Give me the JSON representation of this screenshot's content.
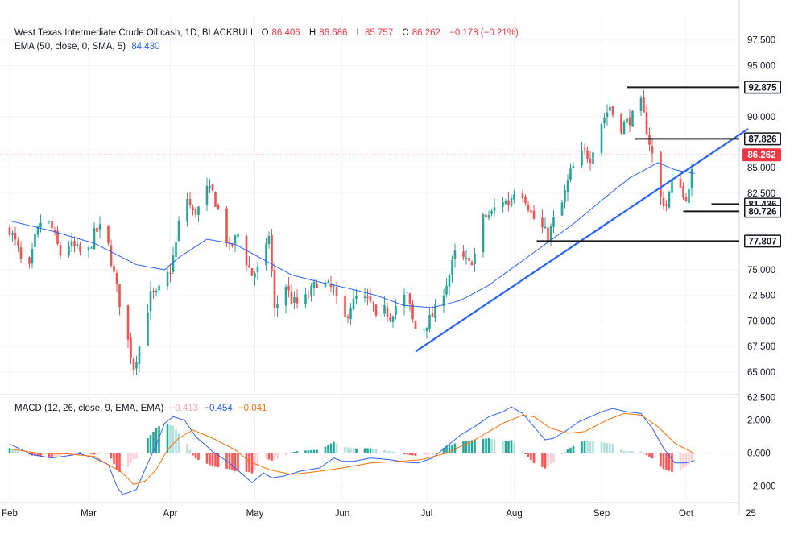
{
  "header": {
    "symbol_title": "West Texas Intermediate Crude Oil cash, 1D, BLACKBULL",
    "o_label": "O",
    "o_value": "86.406",
    "h_label": "H",
    "h_value": "86.686",
    "l_label": "L",
    "l_value": "85.757",
    "c_label": "C",
    "c_value": "86.262",
    "change": "−0.178 (−0.21%)",
    "ema_label": "EMA (50, close, 0, SMA, 5)",
    "ema_value": "84.430"
  },
  "macd_header": {
    "label": "MACD (12, 26, close, 9, EMA, EMA)",
    "hist_value": "−0.413",
    "macd_value": "−0.454",
    "signal_value": "−0.041"
  },
  "colors": {
    "up": "#26a69a",
    "down": "#ef5350",
    "ema": "#2962ff",
    "macd": "#2962ff",
    "signal": "#ff6d00",
    "line": "#1a1a1a",
    "price_badge": "#f23645"
  },
  "chart_data": [
    {
      "type": "candlestick",
      "title": "West Texas Intermediate Crude Oil cash, 1D, BLACKBULL",
      "ylim": [
        60.5,
        98.0
      ],
      "y_ticks": [
        "97.500",
        "95.000",
        "90.000",
        "85.000",
        "82.500",
        "75.000",
        "72.500",
        "70.000",
        "67.500",
        "65.000",
        "62.500"
      ],
      "x_ticks": [
        "Feb",
        "Mar",
        "Apr",
        "May",
        "Jun",
        "Jul",
        "Aug",
        "Sep",
        "Oct",
        "25"
      ],
      "x_tick_days": [
        0,
        28,
        57,
        87,
        118,
        148,
        179,
        210,
        240,
        263
      ],
      "current_price": 86.262,
      "current_price_label": "86.262",
      "level_labels": [
        {
          "value": 92.875,
          "label": "92.875",
          "x_from_day": 219
        },
        {
          "value": 87.826,
          "label": "87.826",
          "x_from_day": 222
        },
        {
          "value": 81.436,
          "label": "81.436",
          "x_from_day": 249
        },
        {
          "value": 80.726,
          "label": "80.726",
          "x_from_day": 239
        },
        {
          "value": 77.807,
          "label": "77.807",
          "x_from_day": 187
        }
      ],
      "trendline": {
        "from": {
          "day": 144,
          "price": 67.0
        },
        "to": {
          "day": 262,
          "price": 88.8
        }
      },
      "anchors": [
        [
          0,
          79.0
        ],
        [
          3,
          77.0
        ],
        [
          6,
          73.6
        ],
        [
          9,
          78.0
        ],
        [
          12,
          80.5
        ],
        [
          15,
          79.0
        ],
        [
          18,
          76.5
        ],
        [
          21,
          77.5
        ],
        [
          24,
          77.0
        ],
        [
          27,
          76.0
        ],
        [
          30,
          78.5
        ],
        [
          32,
          79.0
        ],
        [
          35,
          77.3
        ],
        [
          37,
          74.5
        ],
        [
          40,
          70.5
        ],
        [
          42,
          68.0
        ],
        [
          44,
          65.5
        ],
        [
          46,
          67.5
        ],
        [
          48,
          70.0
        ],
        [
          50,
          72.5
        ],
        [
          52,
          72.5
        ],
        [
          54,
          73.5
        ],
        [
          57,
          75.0
        ],
        [
          59,
          77.5
        ],
        [
          61,
          81.5
        ],
        [
          63,
          82.0
        ],
        [
          65,
          80.5
        ],
        [
          67,
          81.0
        ],
        [
          69,
          83.0
        ],
        [
          72,
          82.5
        ],
        [
          75,
          80.0
        ],
        [
          78,
          77.0
        ],
        [
          81,
          78.5
        ],
        [
          83,
          76.5
        ],
        [
          86,
          74.5
        ],
        [
          88,
          75.0
        ],
        [
          90,
          75.5
        ],
        [
          92,
          78.5
        ],
        [
          94,
          71.0
        ],
        [
          96,
          72.5
        ],
        [
          98,
          73.5
        ],
        [
          100,
          72.0
        ],
        [
          103,
          71.5
        ],
        [
          106,
          72.5
        ],
        [
          109,
          73.8
        ],
        [
          112,
          73.5
        ],
        [
          115,
          73.0
        ],
        [
          118,
          69.5
        ],
        [
          121,
          71.5
        ],
        [
          124,
          72.5
        ],
        [
          126,
          72.0
        ],
        [
          129,
          71.5
        ],
        [
          131,
          68.5
        ],
        [
          133,
          71.0
        ],
        [
          135,
          70.5
        ],
        [
          138,
          72.0
        ],
        [
          141,
          72.5
        ],
        [
          143,
          70.0
        ],
        [
          145,
          68.5
        ],
        [
          148,
          69.8
        ],
        [
          150,
          70.5
        ],
        [
          152,
          71.5
        ],
        [
          154,
          73.0
        ],
        [
          156,
          74.5
        ],
        [
          158,
          76.5
        ],
        [
          161,
          76.0
        ],
        [
          163,
          75.5
        ],
        [
          166,
          77.0
        ],
        [
          168,
          80.0
        ],
        [
          171,
          80.5
        ],
        [
          174,
          82.0
        ],
        [
          177,
          81.5
        ],
        [
          180,
          83.5
        ],
        [
          183,
          82.0
        ],
        [
          185,
          80.5
        ],
        [
          187,
          79.5
        ],
        [
          189,
          79.0
        ],
        [
          191,
          78.3
        ],
        [
          193,
          79.8
        ],
        [
          196,
          81.5
        ],
        [
          199,
          84.5
        ],
        [
          202,
          86.0
        ],
        [
          204,
          86.5
        ],
        [
          206,
          86.0
        ],
        [
          208,
          88.0
        ],
        [
          210,
          89.5
        ],
        [
          212,
          90.5
        ],
        [
          213,
          91.0
        ],
        [
          215,
          89.5
        ],
        [
          217,
          89.0
        ],
        [
          219,
          89.5
        ],
        [
          221,
          90.0
        ],
        [
          223,
          92.5
        ],
        [
          225,
          90.0
        ],
        [
          227,
          87.5
        ],
        [
          229,
          85.0
        ],
        [
          231,
          82.0
        ],
        [
          233,
          81.3
        ],
        [
          235,
          83.5
        ],
        [
          237,
          85.0
        ],
        [
          239,
          82.0
        ],
        [
          241,
          82.5
        ],
        [
          243,
          86.3
        ]
      ],
      "ema_anchors": [
        [
          0,
          79.8
        ],
        [
          15,
          78.8
        ],
        [
          30,
          77.6
        ],
        [
          45,
          75.5
        ],
        [
          55,
          75.0
        ],
        [
          60,
          76.2
        ],
        [
          70,
          78.0
        ],
        [
          80,
          77.5
        ],
        [
          90,
          76.0
        ],
        [
          100,
          74.5
        ],
        [
          110,
          73.8
        ],
        [
          120,
          73.2
        ],
        [
          130,
          72.5
        ],
        [
          140,
          71.5
        ],
        [
          150,
          71.3
        ],
        [
          160,
          72.0
        ],
        [
          170,
          73.5
        ],
        [
          180,
          75.5
        ],
        [
          190,
          77.5
        ],
        [
          200,
          79.5
        ],
        [
          210,
          81.8
        ],
        [
          220,
          84.0
        ],
        [
          230,
          85.5
        ],
        [
          236,
          84.8
        ],
        [
          243,
          84.43
        ]
      ]
    },
    {
      "type": "macd",
      "title": "MACD (12, 26, close, 9, EMA, EMA)",
      "ylim": [
        -3.0,
        3.0
      ],
      "y_ticks": [
        "2.000",
        "0.000",
        "−2.000"
      ],
      "macd_anchors": [
        [
          0,
          0.55
        ],
        [
          8,
          -0.1
        ],
        [
          15,
          -0.3
        ],
        [
          25,
          -0.05
        ],
        [
          30,
          -0.3
        ],
        [
          35,
          -0.7
        ],
        [
          38,
          -2.0
        ],
        [
          40,
          -2.5
        ],
        [
          42,
          -2.4
        ],
        [
          45,
          -2.2
        ],
        [
          48,
          -1.0
        ],
        [
          52,
          0.5
        ],
        [
          55,
          1.8
        ],
        [
          58,
          2.2
        ],
        [
          62,
          2.0
        ],
        [
          66,
          1.0
        ],
        [
          72,
          0.1
        ],
        [
          78,
          -0.6
        ],
        [
          82,
          -1.2
        ],
        [
          86,
          -1.8
        ],
        [
          90,
          -1.2
        ],
        [
          93,
          -1.5
        ],
        [
          97,
          -1.4
        ],
        [
          103,
          -1.1
        ],
        [
          110,
          -0.9
        ],
        [
          115,
          -0.3
        ],
        [
          118,
          -0.5
        ],
        [
          122,
          -0.5
        ],
        [
          128,
          -0.3
        ],
        [
          135,
          -0.4
        ],
        [
          140,
          -0.55
        ],
        [
          145,
          -0.6
        ],
        [
          150,
          -0.3
        ],
        [
          155,
          0.4
        ],
        [
          160,
          1.1
        ],
        [
          165,
          1.6
        ],
        [
          170,
          2.2
        ],
        [
          175,
          2.5
        ],
        [
          178,
          2.8
        ],
        [
          182,
          2.4
        ],
        [
          186,
          1.6
        ],
        [
          190,
          0.8
        ],
        [
          193,
          0.9
        ],
        [
          197,
          1.3
        ],
        [
          202,
          1.9
        ],
        [
          206,
          2.2
        ],
        [
          210,
          2.5
        ],
        [
          214,
          2.7
        ],
        [
          219,
          2.5
        ],
        [
          224,
          2.4
        ],
        [
          228,
          1.5
        ],
        [
          232,
          0.3
        ],
        [
          236,
          -0.6
        ],
        [
          240,
          -0.6
        ],
        [
          243,
          -0.45
        ]
      ],
      "signal_anchors": [
        [
          0,
          0.25
        ],
        [
          10,
          0.0
        ],
        [
          20,
          -0.05
        ],
        [
          30,
          -0.2
        ],
        [
          40,
          -1.2
        ],
        [
          44,
          -1.9
        ],
        [
          48,
          -1.7
        ],
        [
          52,
          -1.0
        ],
        [
          56,
          0.2
        ],
        [
          60,
          0.9
        ],
        [
          65,
          1.4
        ],
        [
          72,
          0.9
        ],
        [
          80,
          0.2
        ],
        [
          85,
          -0.5
        ],
        [
          92,
          -1.0
        ],
        [
          100,
          -1.3
        ],
        [
          110,
          -1.1
        ],
        [
          118,
          -0.9
        ],
        [
          128,
          -0.6
        ],
        [
          138,
          -0.5
        ],
        [
          146,
          -0.4
        ],
        [
          155,
          0.0
        ],
        [
          165,
          0.8
        ],
        [
          175,
          1.8
        ],
        [
          182,
          2.3
        ],
        [
          186,
          2.2
        ],
        [
          192,
          1.5
        ],
        [
          198,
          1.2
        ],
        [
          204,
          1.3
        ],
        [
          212,
          2.0
        ],
        [
          218,
          2.4
        ],
        [
          224,
          2.3
        ],
        [
          230,
          1.6
        ],
        [
          236,
          0.6
        ],
        [
          243,
          -0.04
        ]
      ]
    }
  ]
}
